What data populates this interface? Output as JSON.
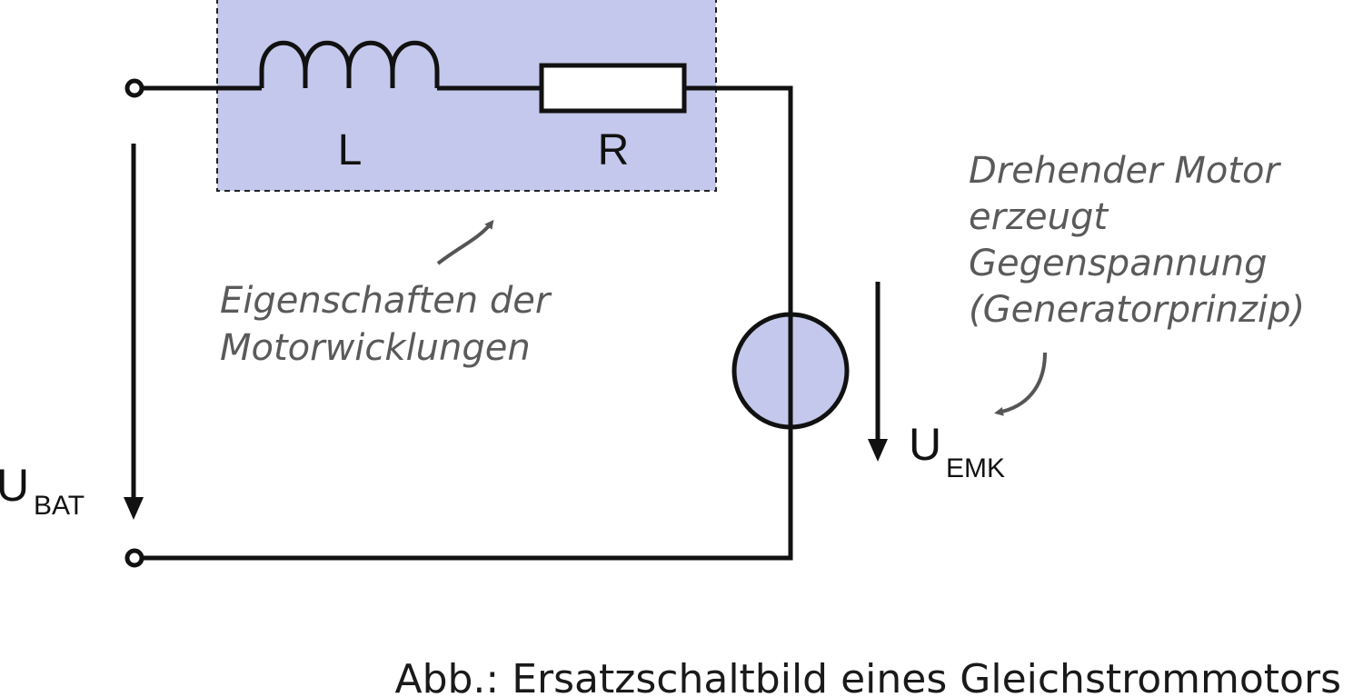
{
  "labels": {
    "inductor": "L",
    "resistor": "R",
    "battery_voltage": {
      "main": "U",
      "sub": "BAT"
    },
    "emf_voltage": {
      "main": "U",
      "sub": "EMK"
    }
  },
  "annotations": {
    "windings": [
      "Eigenschaften der",
      "Motorwicklungen"
    ],
    "motor": [
      "Drehender Motor",
      "erzeugt",
      "Gegenspannung",
      "(Generatorprinzip)"
    ]
  },
  "caption": "Abb.: Ersatzschaltbild eines Gleichstrommotors",
  "colors": {
    "highlight_fill": "#c4c8ec",
    "wire": "#111111",
    "note_text": "#5a5a5a",
    "note_arrow": "#555555"
  }
}
